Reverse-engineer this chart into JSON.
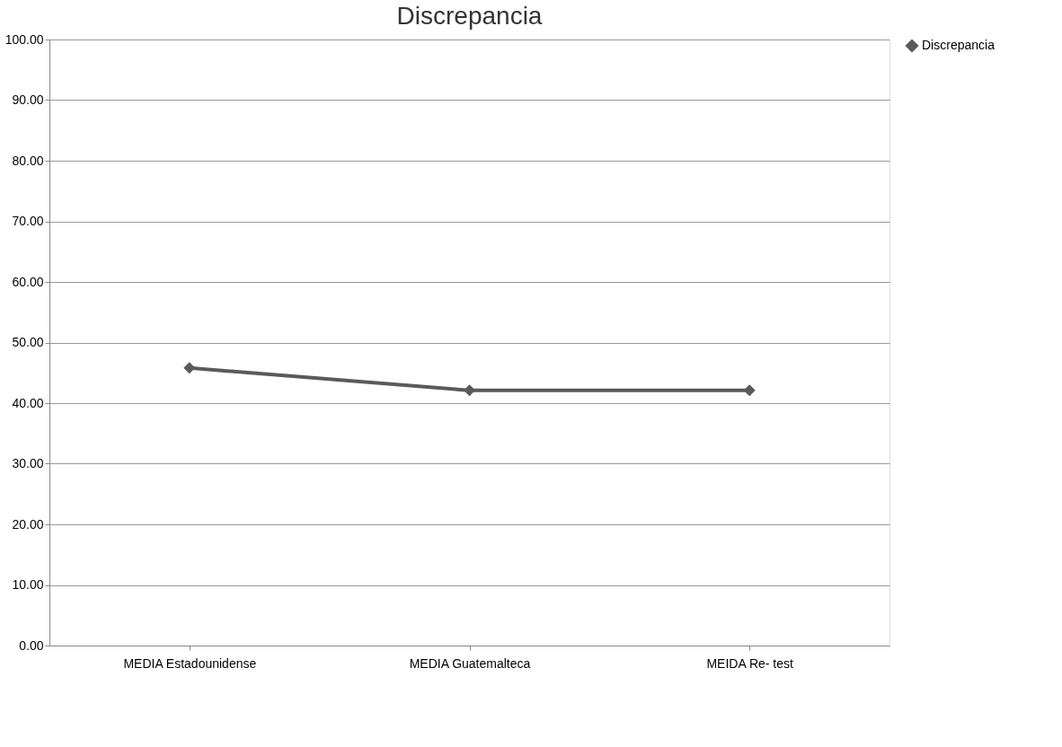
{
  "chart_data": {
    "type": "line",
    "title": "Discrepancia",
    "categories": [
      "MEDIA Estadounidense",
      "MEDIA Guatemalteca",
      "MEIDA Re- test"
    ],
    "series": [
      {
        "name": "Discrepancia",
        "color": "#5a5a5a",
        "values": [
          45.8,
          42.1,
          42.1
        ]
      }
    ],
    "ylim": [
      0,
      100
    ],
    "yticks": [
      {
        "value": 0,
        "label": "0.00"
      },
      {
        "value": 10,
        "label": "10.00"
      },
      {
        "value": 20,
        "label": "20.00"
      },
      {
        "value": 30,
        "label": "30.00"
      },
      {
        "value": 40,
        "label": "40.00"
      },
      {
        "value": 50,
        "label": "50.00"
      },
      {
        "value": 60,
        "label": "60.00"
      },
      {
        "value": 70,
        "label": "70.00"
      },
      {
        "value": 80,
        "label": "80.00"
      },
      {
        "value": 90,
        "label": "90.00"
      },
      {
        "value": 100,
        "label": "100.00"
      }
    ],
    "grid": "y",
    "legend": "right",
    "marker": "diamond",
    "line_style": "solid"
  }
}
